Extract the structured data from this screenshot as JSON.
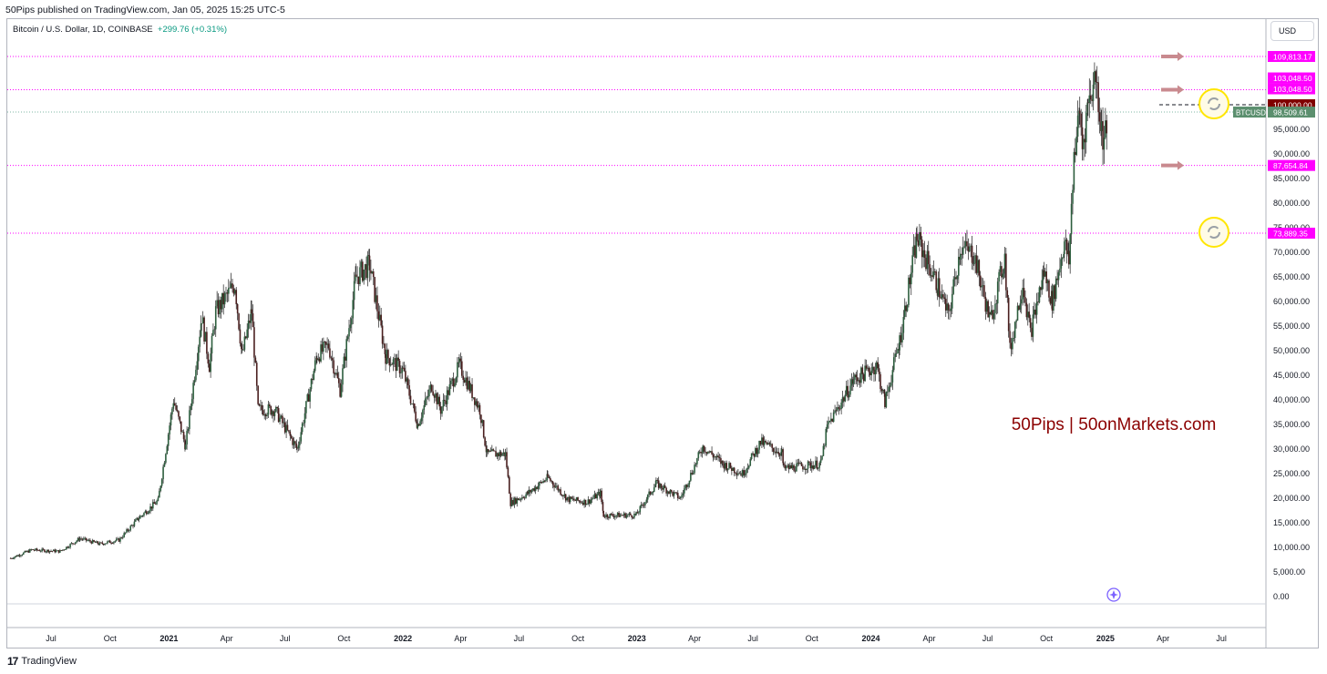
{
  "header": {
    "published": "50Pips published on TradingView.com, Jan 05, 2025 15:25 UTC-5"
  },
  "symbol": {
    "name": "Bitcoin / U.S. Dollar, 1D, COINBASE",
    "change": "+299.76 (+0.31%)"
  },
  "currency_button": "USD",
  "watermark": "50Pips | 50onMarkets.com",
  "footer": {
    "brand": "TradingView",
    "logo": "17"
  },
  "colors": {
    "up": "#089981",
    "down": "#f23645",
    "candle": "#1e1e1e",
    "level": "#ff00ff",
    "price_tag": "#5b8f6e",
    "hundredk_tag": "#800000",
    "watermark": "#8b0000",
    "arrow": "#c98a8f"
  },
  "chart_data": {
    "type": "candlestick",
    "title": "",
    "ylim": [
      0,
      115000
    ],
    "y_ticks": [
      0,
      5000,
      10000,
      15000,
      20000,
      25000,
      30000,
      35000,
      40000,
      45000,
      50000,
      55000,
      60000,
      65000,
      70000,
      75000,
      80000,
      85000,
      90000,
      95000
    ],
    "y_tick_labels": [
      "0.00",
      "5,000.00",
      "10,000.00",
      "15,000.00",
      "20,000.00",
      "25,000.00",
      "30,000.00",
      "35,000.00",
      "40,000.00",
      "45,000.00",
      "50,000.00",
      "55,000.00",
      "60,000.00",
      "65,000.00",
      "70,000.00",
      "75,000.00",
      "80,000.00",
      "85,000.00",
      "90,000.00",
      "95,000.00"
    ],
    "x_ticks": [
      "2020-07-01",
      "2020-10-01",
      "2021-01-01",
      "2021-04-01",
      "2021-07-01",
      "2021-10-01",
      "2022-01-01",
      "2022-04-01",
      "2022-07-01",
      "2022-10-01",
      "2023-01-01",
      "2023-04-01",
      "2023-07-01",
      "2023-10-01",
      "2024-01-01",
      "2024-04-01",
      "2024-07-01",
      "2024-10-01",
      "2025-01-01",
      "2025-04-01",
      "2025-07-01"
    ],
    "x_tick_labels": [
      "Jul",
      "Oct",
      "2021",
      "Apr",
      "Jul",
      "Oct",
      "2022",
      "Apr",
      "Jul",
      "Oct",
      "2023",
      "Apr",
      "Jul",
      "Oct",
      "2024",
      "Apr",
      "Jul",
      "Oct",
      "2025",
      "Apr",
      "Jul"
    ],
    "x_range": [
      "2020-04-29",
      "2025-09-06"
    ],
    "series": [
      {
        "date": "2020-04-29",
        "close": 7800
      },
      {
        "date": "2020-06-01",
        "close": 9500
      },
      {
        "date": "2020-07-15",
        "close": 9200
      },
      {
        "date": "2020-08-15",
        "close": 11800
      },
      {
        "date": "2020-09-15",
        "close": 10700
      },
      {
        "date": "2020-10-15",
        "close": 11500
      },
      {
        "date": "2020-11-15",
        "close": 16000
      },
      {
        "date": "2020-12-15",
        "close": 19500
      },
      {
        "date": "2021-01-08",
        "close": 40000
      },
      {
        "date": "2021-01-27",
        "close": 30500
      },
      {
        "date": "2021-02-21",
        "close": 57000
      },
      {
        "date": "2021-03-05",
        "close": 47000
      },
      {
        "date": "2021-03-15",
        "close": 58000
      },
      {
        "date": "2021-04-14",
        "close": 63500
      },
      {
        "date": "2021-04-25",
        "close": 49000
      },
      {
        "date": "2021-05-10",
        "close": 58000
      },
      {
        "date": "2021-05-20",
        "close": 38000
      },
      {
        "date": "2021-06-15",
        "close": 38000
      },
      {
        "date": "2021-07-20",
        "close": 30000
      },
      {
        "date": "2021-08-20",
        "close": 49000
      },
      {
        "date": "2021-09-07",
        "close": 51000
      },
      {
        "date": "2021-09-25",
        "close": 42000
      },
      {
        "date": "2021-10-20",
        "close": 65000
      },
      {
        "date": "2021-11-10",
        "close": 67500
      },
      {
        "date": "2021-12-05",
        "close": 49000
      },
      {
        "date": "2022-01-01",
        "close": 46000
      },
      {
        "date": "2022-01-24",
        "close": 35000
      },
      {
        "date": "2022-02-15",
        "close": 43000
      },
      {
        "date": "2022-03-01",
        "close": 38000
      },
      {
        "date": "2022-03-30",
        "close": 47000
      },
      {
        "date": "2022-05-01",
        "close": 38000
      },
      {
        "date": "2022-05-12",
        "close": 29000
      },
      {
        "date": "2022-06-10",
        "close": 29000
      },
      {
        "date": "2022-06-18",
        "close": 19000
      },
      {
        "date": "2022-07-15",
        "close": 21000
      },
      {
        "date": "2022-08-15",
        "close": 24200
      },
      {
        "date": "2022-09-15",
        "close": 19800
      },
      {
        "date": "2022-10-15",
        "close": 19200
      },
      {
        "date": "2022-11-05",
        "close": 21000
      },
      {
        "date": "2022-11-10",
        "close": 16500
      },
      {
        "date": "2022-12-31",
        "close": 16600
      },
      {
        "date": "2023-01-31",
        "close": 23000
      },
      {
        "date": "2023-03-10",
        "close": 20000
      },
      {
        "date": "2023-04-14",
        "close": 30500
      },
      {
        "date": "2023-05-15",
        "close": 27000
      },
      {
        "date": "2023-06-15",
        "close": 25000
      },
      {
        "date": "2023-07-13",
        "close": 31400
      },
      {
        "date": "2023-08-15",
        "close": 29200
      },
      {
        "date": "2023-08-18",
        "close": 26000
      },
      {
        "date": "2023-09-15",
        "close": 26500
      },
      {
        "date": "2023-10-15",
        "close": 27000
      },
      {
        "date": "2023-10-25",
        "close": 34500
      },
      {
        "date": "2023-12-05",
        "close": 44000
      },
      {
        "date": "2024-01-10",
        "close": 47000
      },
      {
        "date": "2024-01-23",
        "close": 39500
      },
      {
        "date": "2024-02-15",
        "close": 52000
      },
      {
        "date": "2024-03-13",
        "close": 73000
      },
      {
        "date": "2024-04-15",
        "close": 63000
      },
      {
        "date": "2024-05-01",
        "close": 57000
      },
      {
        "date": "2024-05-20",
        "close": 71000
      },
      {
        "date": "2024-06-10",
        "close": 69500
      },
      {
        "date": "2024-07-05",
        "close": 56000
      },
      {
        "date": "2024-07-28",
        "close": 69000
      },
      {
        "date": "2024-08-05",
        "close": 50000
      },
      {
        "date": "2024-08-25",
        "close": 64000
      },
      {
        "date": "2024-09-06",
        "close": 53500
      },
      {
        "date": "2024-09-27",
        "close": 66000
      },
      {
        "date": "2024-10-10",
        "close": 60000
      },
      {
        "date": "2024-10-29",
        "close": 72000
      },
      {
        "date": "2024-11-05",
        "close": 68000
      },
      {
        "date": "2024-11-13",
        "close": 90000
      },
      {
        "date": "2024-11-22",
        "close": 98500
      },
      {
        "date": "2024-11-26",
        "close": 91500
      },
      {
        "date": "2024-12-05",
        "close": 100500
      },
      {
        "date": "2024-12-17",
        "close": 106000
      },
      {
        "date": "2024-12-26",
        "close": 95000
      },
      {
        "date": "2024-12-30",
        "close": 92500
      },
      {
        "date": "2025-01-05",
        "close": 98500
      }
    ],
    "levels": [
      {
        "value": 109813.17,
        "label": "109,813.17"
      },
      {
        "value": 103048.5,
        "label": "103,048.50"
      },
      {
        "value": 87654.84,
        "label": "87,654.84"
      },
      {
        "value": 73889.35,
        "label": "73,889.35"
      }
    ],
    "level_extra_label": "103,048.50",
    "price_line": {
      "value": 98509.61,
      "symbol": "BTCUSD",
      "label": "98,509.61"
    },
    "hundredk_tag": {
      "value": 100000,
      "label": "100,000.00"
    }
  }
}
